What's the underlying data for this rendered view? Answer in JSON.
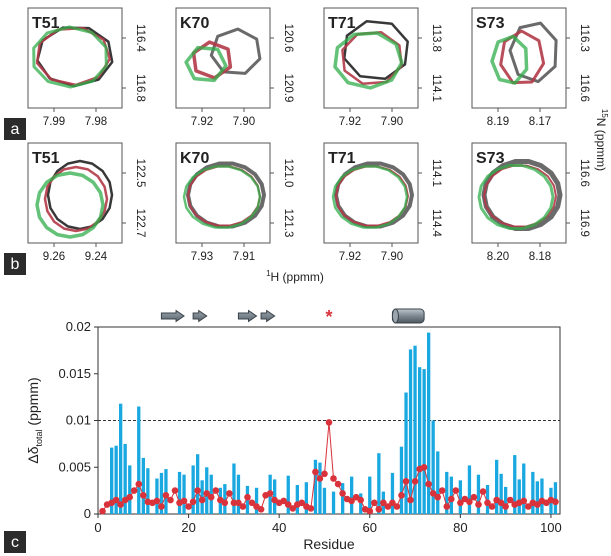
{
  "panel_labels": [
    "a",
    "b",
    "c"
  ],
  "chart_data": [
    {
      "type": "contour",
      "panel": "a",
      "subplots": [
        {
          "residue": "T51",
          "x_ticks": [
            "7.99",
            "7.98"
          ],
          "y_ticks": [
            "116.4",
            "116.8"
          ]
        },
        {
          "residue": "K70",
          "x_ticks": [
            "7.92",
            "7.90"
          ],
          "y_ticks": [
            "120.6",
            "120.9"
          ]
        },
        {
          "residue": "T71",
          "x_ticks": [
            "7.92",
            "7.90"
          ],
          "y_ticks": [
            "113.8",
            "114.1"
          ]
        },
        {
          "residue": "S73",
          "x_ticks": [
            "8.19",
            "8.17"
          ],
          "y_ticks": [
            "116.3",
            "116.6"
          ]
        }
      ]
    },
    {
      "type": "contour",
      "panel": "b",
      "xlabel": "1H (ppmm)",
      "ylabel": "15N (ppmm)",
      "subplots": [
        {
          "residue": "T51",
          "x_ticks": [
            "9.26",
            "9.24"
          ],
          "y_ticks": [
            "122.5",
            "122.7"
          ]
        },
        {
          "residue": "K70",
          "x_ticks": [
            "7.93",
            "7.91"
          ],
          "y_ticks": [
            "121.0",
            "121.3"
          ]
        },
        {
          "residue": "T71",
          "x_ticks": [
            "7.92",
            "7.90"
          ],
          "y_ticks": [
            "114.1",
            "114.4"
          ]
        },
        {
          "residue": "S73",
          "x_ticks": [
            "8.20",
            "8.18"
          ],
          "y_ticks": [
            "116.6",
            "116.9"
          ]
        }
      ]
    },
    {
      "type": "bar",
      "panel": "c",
      "xlabel": "Residue",
      "ylabel": "Δδtotal (ppmm)",
      "xlim": [
        0,
        102
      ],
      "ylim": [
        0,
        0.02
      ],
      "x_ticks": [
        0,
        20,
        40,
        60,
        80,
        100
      ],
      "y_ticks": [
        "0",
        "0.005",
        "0.01",
        "0.015",
        "0.02"
      ],
      "threshold": 0.01,
      "highlight_marker": {
        "residue": 51,
        "symbol": "*"
      },
      "secondary_structure": [
        {
          "type": "strand",
          "start": 14,
          "end": 19
        },
        {
          "type": "strand",
          "start": 21,
          "end": 24
        },
        {
          "type": "strand",
          "start": 31,
          "end": 35
        },
        {
          "type": "strand",
          "start": 36,
          "end": 39
        },
        {
          "type": "helix",
          "start": 65,
          "end": 72
        }
      ],
      "series": [
        {
          "style": "bars",
          "x": [
            3,
            4,
            5,
            6,
            7,
            9,
            10,
            11,
            13,
            14,
            15,
            18,
            19,
            21,
            22,
            23,
            24,
            25,
            27,
            28,
            30,
            31,
            33,
            35,
            38,
            39,
            42,
            44,
            46,
            48,
            49,
            50,
            52,
            54,
            56,
            58,
            60,
            62,
            63,
            65,
            67,
            68,
            69,
            70,
            71,
            72,
            73,
            74,
            75,
            77,
            78,
            80,
            82,
            84,
            86,
            88,
            89,
            90,
            92,
            93,
            94,
            96,
            97,
            98,
            100,
            101
          ],
          "values": [
            0.0071,
            0.0073,
            0.0118,
            0.0075,
            0.0052,
            0.0115,
            0.006,
            0.0049,
            0.0038,
            0.0044,
            0.0048,
            0.0045,
            0.0042,
            0.0052,
            0.0064,
            0.0036,
            0.005,
            0.0042,
            0.0028,
            0.0032,
            0.0054,
            0.0042,
            0.003,
            0.0028,
            0.0042,
            0.0037,
            0.0041,
            0.0031,
            0.0034,
            0.0058,
            0.0055,
            0.0028,
            0.0024,
            0.0033,
            0.004,
            0.0022,
            0.004,
            0.0065,
            0.0024,
            0.0044,
            0.0072,
            0.013,
            0.0176,
            0.018,
            0.0157,
            0.0155,
            0.0194,
            0.01,
            0.0067,
            0.0045,
            0.004,
            0.0036,
            0.0052,
            0.0042,
            0.0031,
            0.0058,
            0.0043,
            0.0029,
            0.0063,
            0.0037,
            0.0054,
            0.0045,
            0.0035,
            0.0038,
            0.0028,
            0.0034
          ]
        },
        {
          "style": "dots",
          "x": [
            1,
            2,
            3,
            4,
            5,
            6,
            7,
            8,
            9,
            10,
            11,
            12,
            13,
            14,
            15,
            16,
            17,
            18,
            19,
            20,
            21,
            22,
            23,
            24,
            25,
            26,
            27,
            28,
            29,
            30,
            31,
            32,
            33,
            34,
            35,
            36,
            37,
            38,
            39,
            40,
            41,
            42,
            43,
            44,
            45,
            46,
            47,
            48,
            49,
            50,
            51,
            52,
            53,
            54,
            55,
            56,
            57,
            58,
            59,
            60,
            61,
            62,
            63,
            64,
            65,
            66,
            67,
            68,
            69,
            70,
            71,
            72,
            73,
            74,
            75,
            76,
            77,
            78,
            79,
            80,
            81,
            82,
            83,
            84,
            85,
            86,
            87,
            88,
            89,
            90,
            91,
            92,
            93,
            94,
            95,
            96,
            97,
            98,
            99,
            100,
            101
          ],
          "values": [
            0.0003,
            0.001,
            0.0012,
            0.0015,
            0.001,
            0.0015,
            0.0018,
            0.0025,
            0.0032,
            0.002,
            0.0013,
            0.0012,
            0.0014,
            0.0008,
            0.002,
            0.0015,
            0.0025,
            0.0012,
            0.0014,
            0.0008,
            0.0013,
            0.0025,
            0.0015,
            0.0022,
            0.0018,
            0.0025,
            0.0015,
            0.0012,
            0.0022,
            0.0012,
            0.0012,
            0.0008,
            0.0018,
            0.0012,
            0.0008,
            0.0005,
            0.002,
            0.0022,
            0.0015,
            0.0012,
            0.0014,
            0.001,
            0.0006,
            0.001,
            0.0012,
            0.0008,
            0.0006,
            0.0045,
            0.0038,
            0.0043,
            0.0098,
            0.0038,
            0.0032,
            0.0022,
            0.0016,
            0.0014,
            0.0018,
            0.0015,
            0.0005,
            0.0003,
            0.0012,
            0.0005,
            0.0012,
            0.0008,
            0.0012,
            0.0008,
            0.002,
            0.0035,
            0.0015,
            0.0035,
            0.0048,
            0.005,
            0.0032,
            0.0022,
            0.0018,
            0.0025,
            0.0008,
            0.0016,
            0.0025,
            0.0012,
            0.0016,
            0.0013,
            0.0018,
            0.001,
            0.0024,
            0.0012,
            0.0008,
            0.0015,
            0.0012,
            0.0008,
            0.0015,
            0.001,
            0.0012,
            0.0014,
            0.0008,
            0.0012,
            0.001,
            0.0014,
            0.0012,
            0.0015,
            0.0013
          ]
        }
      ]
    }
  ]
}
